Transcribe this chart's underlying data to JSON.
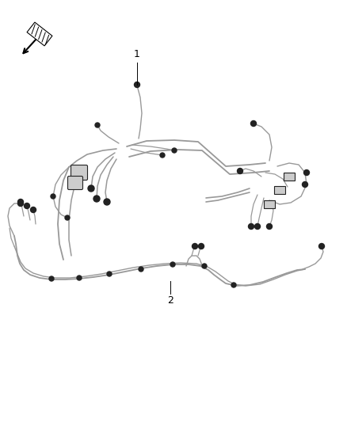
{
  "background_color": "#ffffff",
  "line_color": "#999999",
  "dark_color": "#222222",
  "label1_text": "1",
  "label2_text": "2",
  "label_color": "#000000",
  "font_size_label": 9,
  "figsize": [
    4.38,
    5.33
  ],
  "dpi": 100
}
